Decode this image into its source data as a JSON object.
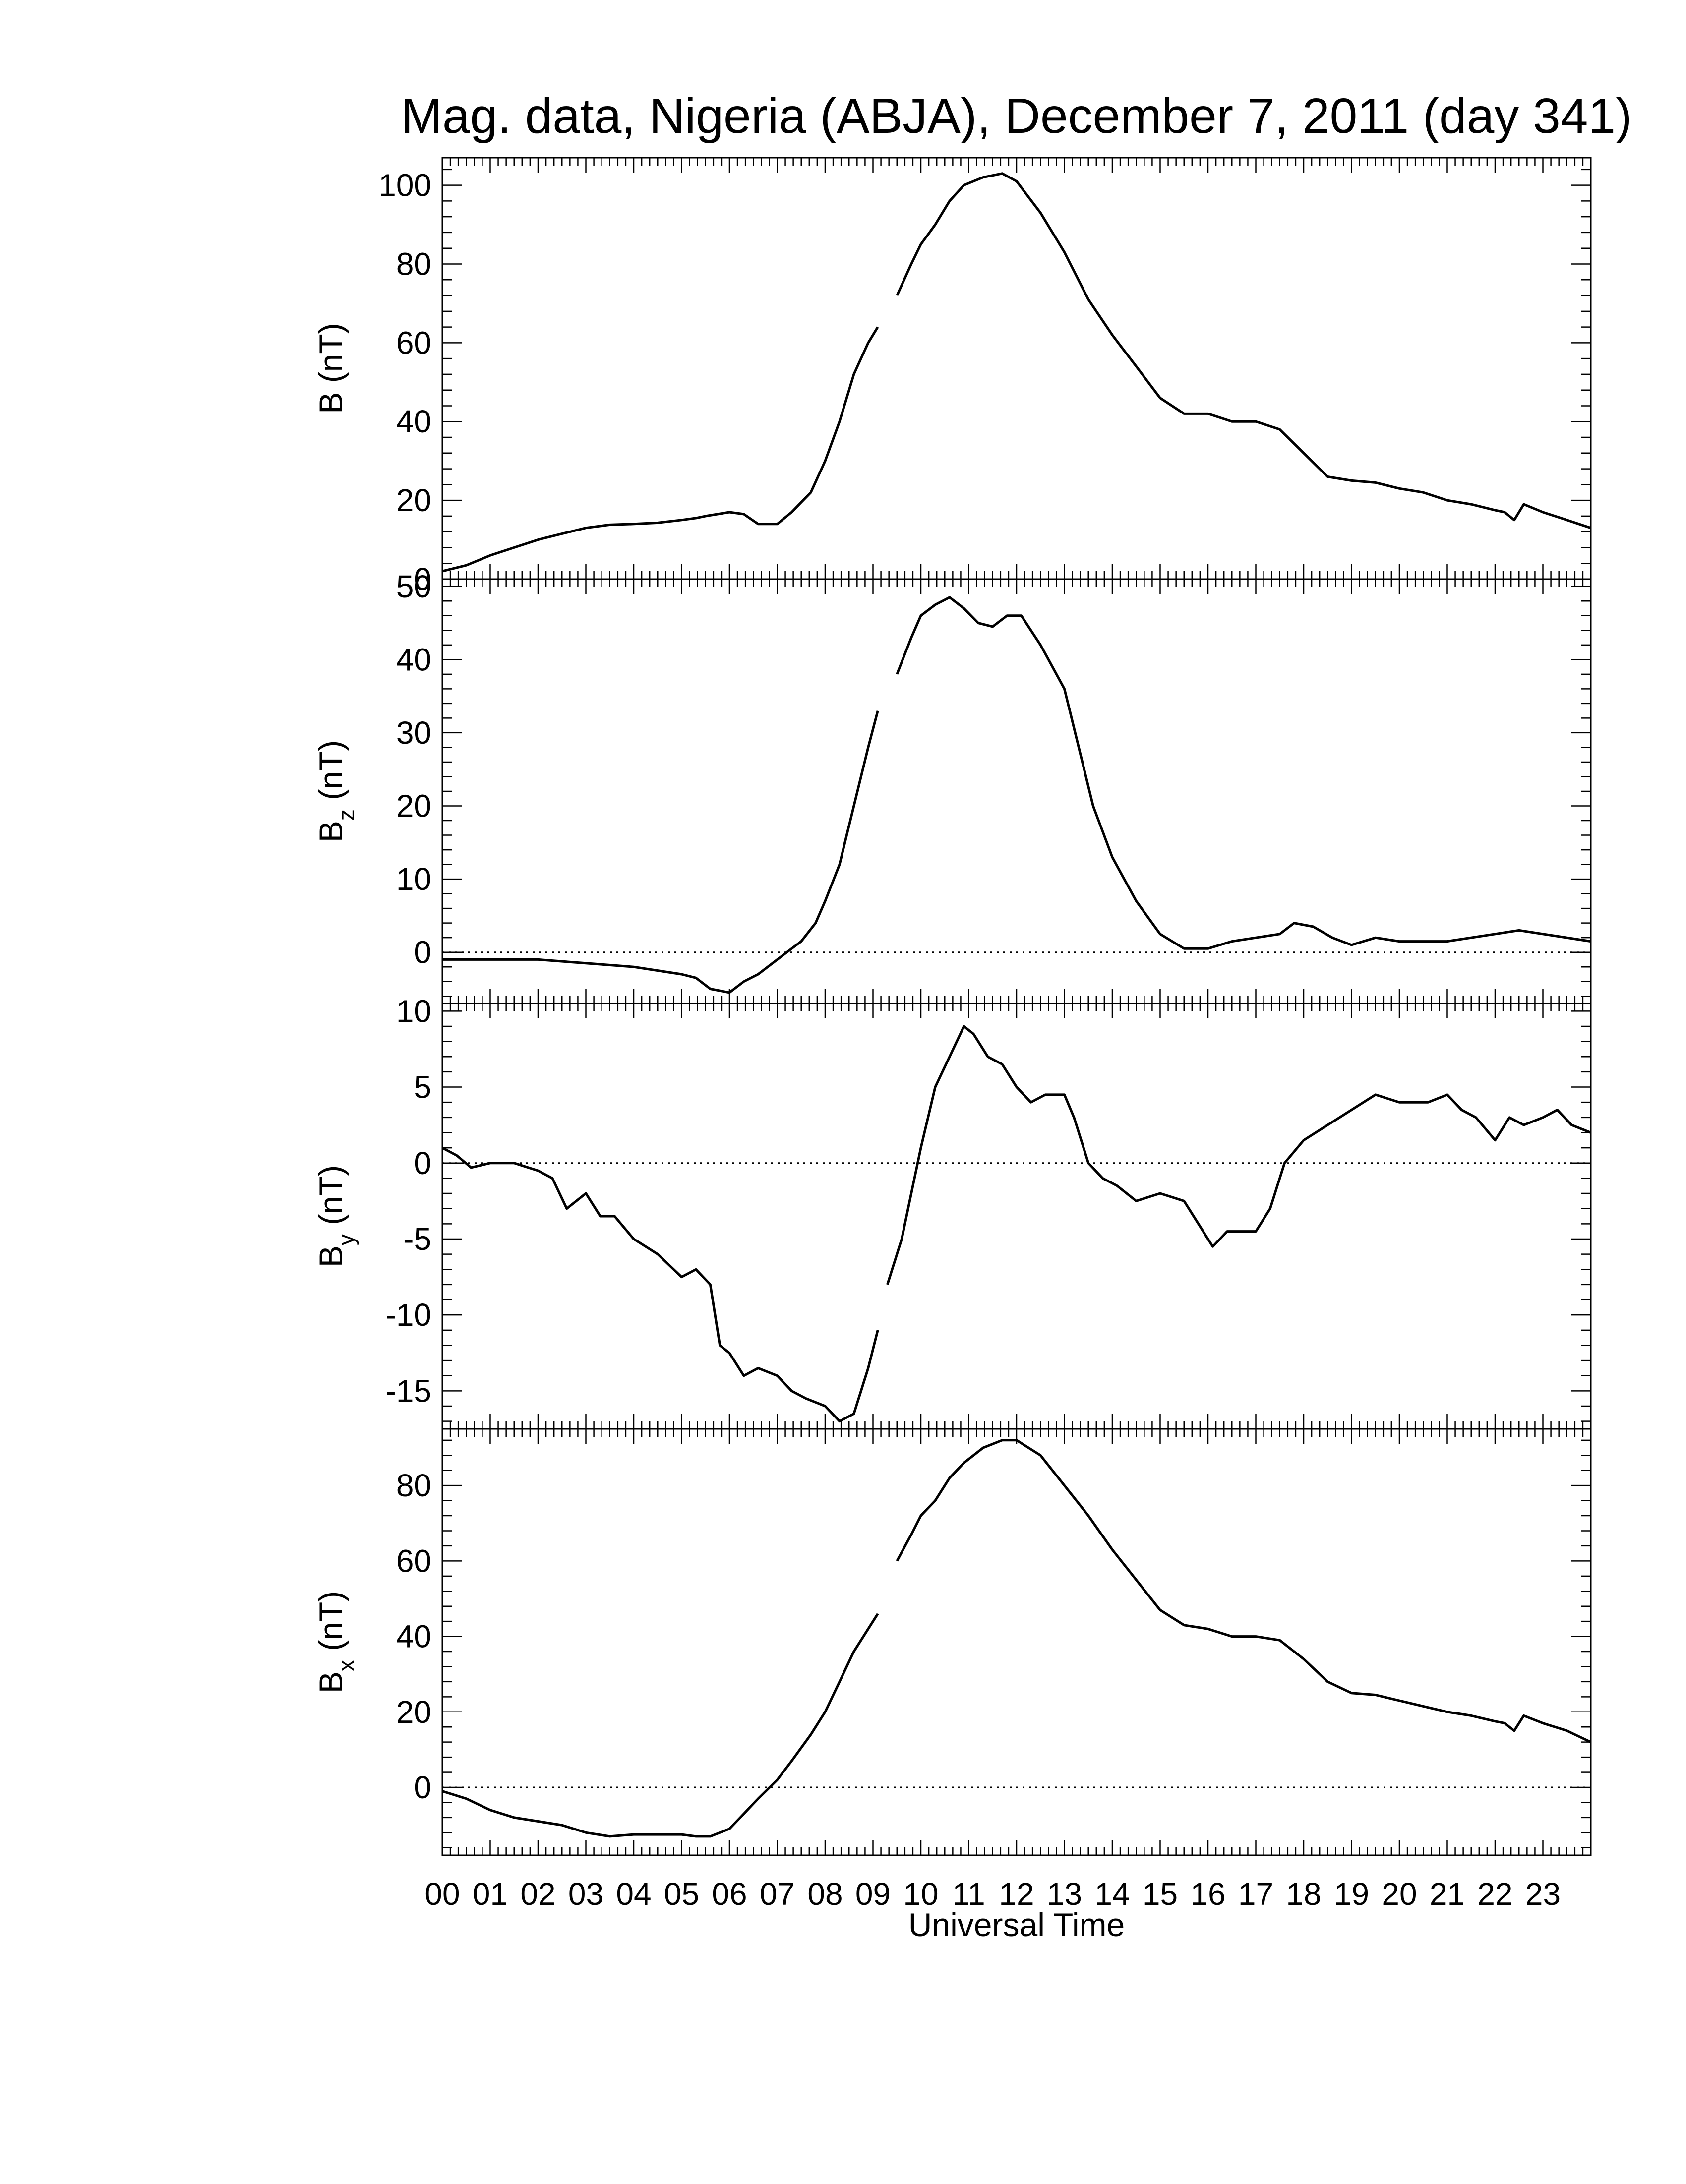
{
  "title": "Mag. data, Nigeria (ABJA), December 7, 2011 (day 341)",
  "xlabel": "Universal Time",
  "x_tick_labels": [
    "00",
    "01",
    "02",
    "03",
    "04",
    "05",
    "06",
    "07",
    "08",
    "09",
    "10",
    "11",
    "12",
    "13",
    "14",
    "15",
    "16",
    "17",
    "18",
    "19",
    "20",
    "21",
    "22",
    "23"
  ],
  "chart_data": [
    {
      "type": "line",
      "name": "B",
      "ylabel": "B (nT)",
      "ylabel_base": "B",
      "ylabel_sub": "",
      "ylim": [
        0,
        107
      ],
      "yticks": [
        0,
        20,
        40,
        60,
        80,
        100
      ],
      "zero_line": false,
      "x": [
        0,
        0.5,
        1,
        1.5,
        2,
        2.5,
        3,
        3.5,
        4,
        4.5,
        5,
        5.3,
        5.5,
        6,
        6.3,
        6.6,
        7,
        7.3,
        7.7,
        8,
        8.3,
        8.6,
        8.9,
        9.1,
        null,
        9.5,
        9.8,
        10,
        10.3,
        10.6,
        10.9,
        11.3,
        11.7,
        12,
        12.5,
        13,
        13.5,
        14,
        14.5,
        15,
        15.5,
        16,
        16.5,
        17,
        17.5,
        18,
        18.5,
        19,
        19.5,
        20,
        20.5,
        21,
        21.5,
        22,
        22.2,
        22.4,
        22.6,
        23,
        23.5,
        24
      ],
      "y": [
        2,
        3.5,
        6,
        8,
        10,
        11.5,
        13,
        13.8,
        14,
        14.3,
        15,
        15.5,
        16,
        17,
        16.5,
        14,
        14,
        17,
        22,
        30,
        40,
        52,
        60,
        64,
        null,
        72,
        80,
        85,
        90,
        96,
        100,
        102,
        103,
        101,
        93,
        83,
        71,
        62,
        54,
        46,
        42,
        42,
        40,
        40,
        38,
        32,
        26,
        25,
        24.5,
        23,
        22,
        20,
        19,
        17.5,
        17,
        15,
        19,
        17,
        15,
        13
      ]
    },
    {
      "type": "line",
      "name": "Bz",
      "ylabel": "Bz (nT)",
      "ylabel_base": "B",
      "ylabel_sub": "z",
      "ylim": [
        -7,
        51
      ],
      "yticks": [
        0,
        10,
        20,
        30,
        40,
        50
      ],
      "zero_line": true,
      "x": [
        0,
        1,
        2,
        3,
        4,
        4.5,
        5,
        5.3,
        5.6,
        6,
        6.3,
        6.6,
        7,
        7.5,
        7.8,
        8,
        8.3,
        8.6,
        8.9,
        9.1,
        null,
        9.5,
        9.8,
        10,
        10.3,
        10.6,
        10.9,
        11.2,
        11.5,
        11.8,
        12.1,
        12.5,
        13,
        13.3,
        13.6,
        14,
        14.5,
        15,
        15.5,
        16,
        16.5,
        17,
        17.5,
        17.8,
        18.2,
        18.6,
        19,
        19.5,
        20,
        21,
        22,
        22.5,
        23,
        24
      ],
      "y": [
        -1,
        -1,
        -1,
        -1.5,
        -2,
        -2.5,
        -3,
        -3.5,
        -5,
        -5.5,
        -4,
        -3,
        -1,
        1.5,
        4,
        7,
        12,
        20,
        28,
        33,
        null,
        38,
        43,
        46,
        47.5,
        48.5,
        47,
        45,
        44.5,
        46,
        46,
        42,
        36,
        28,
        20,
        13,
        7,
        2.5,
        0.5,
        0.5,
        1.5,
        2,
        2.5,
        4,
        3.5,
        2,
        1,
        2,
        1.5,
        1.5,
        2.5,
        3,
        2.5,
        1.5
      ]
    },
    {
      "type": "line",
      "name": "By",
      "ylabel": "By (nT)",
      "ylabel_base": "B",
      "ylabel_sub": "y",
      "ylim": [
        -17.5,
        10.5
      ],
      "yticks": [
        -15,
        -10,
        -5,
        0,
        5,
        10
      ],
      "zero_line": true,
      "x": [
        0,
        0.3,
        0.6,
        1,
        1.5,
        2,
        2.3,
        2.6,
        3,
        3.3,
        3.6,
        4,
        4.5,
        5,
        5.3,
        5.6,
        5.8,
        6,
        6.3,
        6.6,
        7,
        7.3,
        7.6,
        8,
        8.3,
        8.6,
        8.9,
        9.1,
        null,
        9.3,
        9.6,
        9.8,
        10,
        10.3,
        10.6,
        10.9,
        11.1,
        11.4,
        11.7,
        12,
        12.3,
        12.6,
        13,
        13.2,
        13.5,
        13.8,
        14.1,
        14.5,
        15,
        15.5,
        15.8,
        16.1,
        16.4,
        16.7,
        17,
        17.3,
        17.6,
        18,
        18.5,
        19,
        19.5,
        20,
        20.3,
        20.6,
        21,
        21.3,
        21.6,
        22,
        22.3,
        22.6,
        23,
        23.3,
        23.6,
        24
      ],
      "y": [
        1,
        0.5,
        -0.3,
        0,
        0,
        -0.5,
        -1,
        -3,
        -2,
        -3.5,
        -3.5,
        -5,
        -6,
        -7.5,
        -7,
        -8,
        -12,
        -12.5,
        -14,
        -13.5,
        -14,
        -15,
        -15.5,
        -16,
        -17,
        -16.5,
        -13.5,
        -11,
        null,
        -8,
        -5,
        -2,
        1,
        5,
        7,
        9,
        8.5,
        7,
        6.5,
        5,
        4,
        4.5,
        4.5,
        3,
        0,
        -1,
        -1.5,
        -2.5,
        -2,
        -2.5,
        -4,
        -5.5,
        -4.5,
        -4.5,
        -4.5,
        -3,
        0,
        1.5,
        2.5,
        3.5,
        4.5,
        4,
        4,
        4,
        4.5,
        3.5,
        3,
        1.5,
        3,
        2.5,
        3,
        3.5,
        2.5,
        2
      ]
    },
    {
      "type": "line",
      "name": "Bx",
      "ylabel": "Bx (nT)",
      "ylabel_base": "B",
      "ylabel_sub": "x",
      "ylim": [
        -18,
        95
      ],
      "yticks": [
        0,
        20,
        40,
        60,
        80
      ],
      "zero_line": true,
      "x": [
        0,
        0.5,
        1,
        1.5,
        2,
        2.5,
        3,
        3.5,
        4,
        4.5,
        5,
        5.3,
        5.6,
        6,
        6.3,
        6.6,
        7,
        7.3,
        7.7,
        8,
        8.3,
        8.6,
        8.9,
        9.1,
        null,
        9.5,
        9.8,
        10,
        10.3,
        10.6,
        10.9,
        11.3,
        11.7,
        12,
        12.5,
        13,
        13.5,
        14,
        14.5,
        15,
        15.5,
        16,
        16.5,
        17,
        17.5,
        18,
        18.5,
        19,
        19.5,
        20,
        20.5,
        21,
        21.5,
        22,
        22.2,
        22.4,
        22.6,
        23,
        23.5,
        24
      ],
      "y": [
        -1,
        -3,
        -6,
        -8,
        -9,
        -10,
        -12,
        -13,
        -12.5,
        -12.5,
        -12.5,
        -13,
        -13,
        -11,
        -7,
        -3,
        2,
        7,
        14,
        20,
        28,
        36,
        42,
        46,
        null,
        60,
        67,
        72,
        76,
        82,
        86,
        90,
        92,
        92,
        88,
        80,
        72,
        63,
        55,
        47,
        43,
        42,
        40,
        40,
        39,
        34,
        28,
        25,
        24.5,
        23,
        21.5,
        20,
        19,
        17.5,
        17,
        15,
        19,
        17,
        15,
        12
      ]
    }
  ]
}
